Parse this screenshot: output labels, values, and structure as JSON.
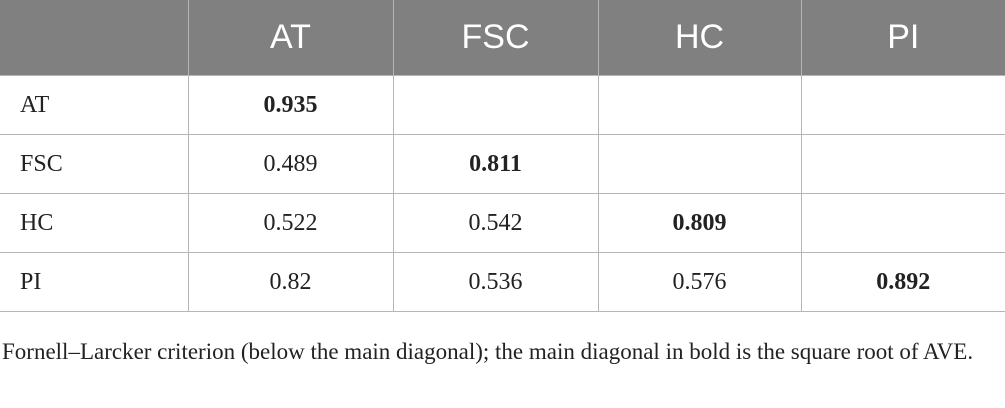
{
  "table": {
    "headers": [
      "",
      "AT",
      "FSC",
      "HC",
      "PI"
    ],
    "rows": [
      {
        "label": "AT",
        "cells": [
          "0.935",
          "",
          "",
          ""
        ],
        "diag": 0
      },
      {
        "label": "FSC",
        "cells": [
          "0.489",
          "0.811",
          "",
          ""
        ],
        "diag": 1
      },
      {
        "label": "HC",
        "cells": [
          "0.522",
          "0.542",
          "0.809",
          ""
        ],
        "diag": 2
      },
      {
        "label": "PI",
        "cells": [
          "0.82",
          "0.536",
          "0.576",
          "0.892"
        ],
        "diag": 3
      }
    ]
  },
  "footnote": "Fornell–Larcker criterion (below the main diagonal); the main diagonal in bold is the square root of AVE.",
  "colors": {
    "header_bg": "#808080",
    "header_text": "#ffffff",
    "grid": "#b5b5b5",
    "text": "#222222"
  }
}
